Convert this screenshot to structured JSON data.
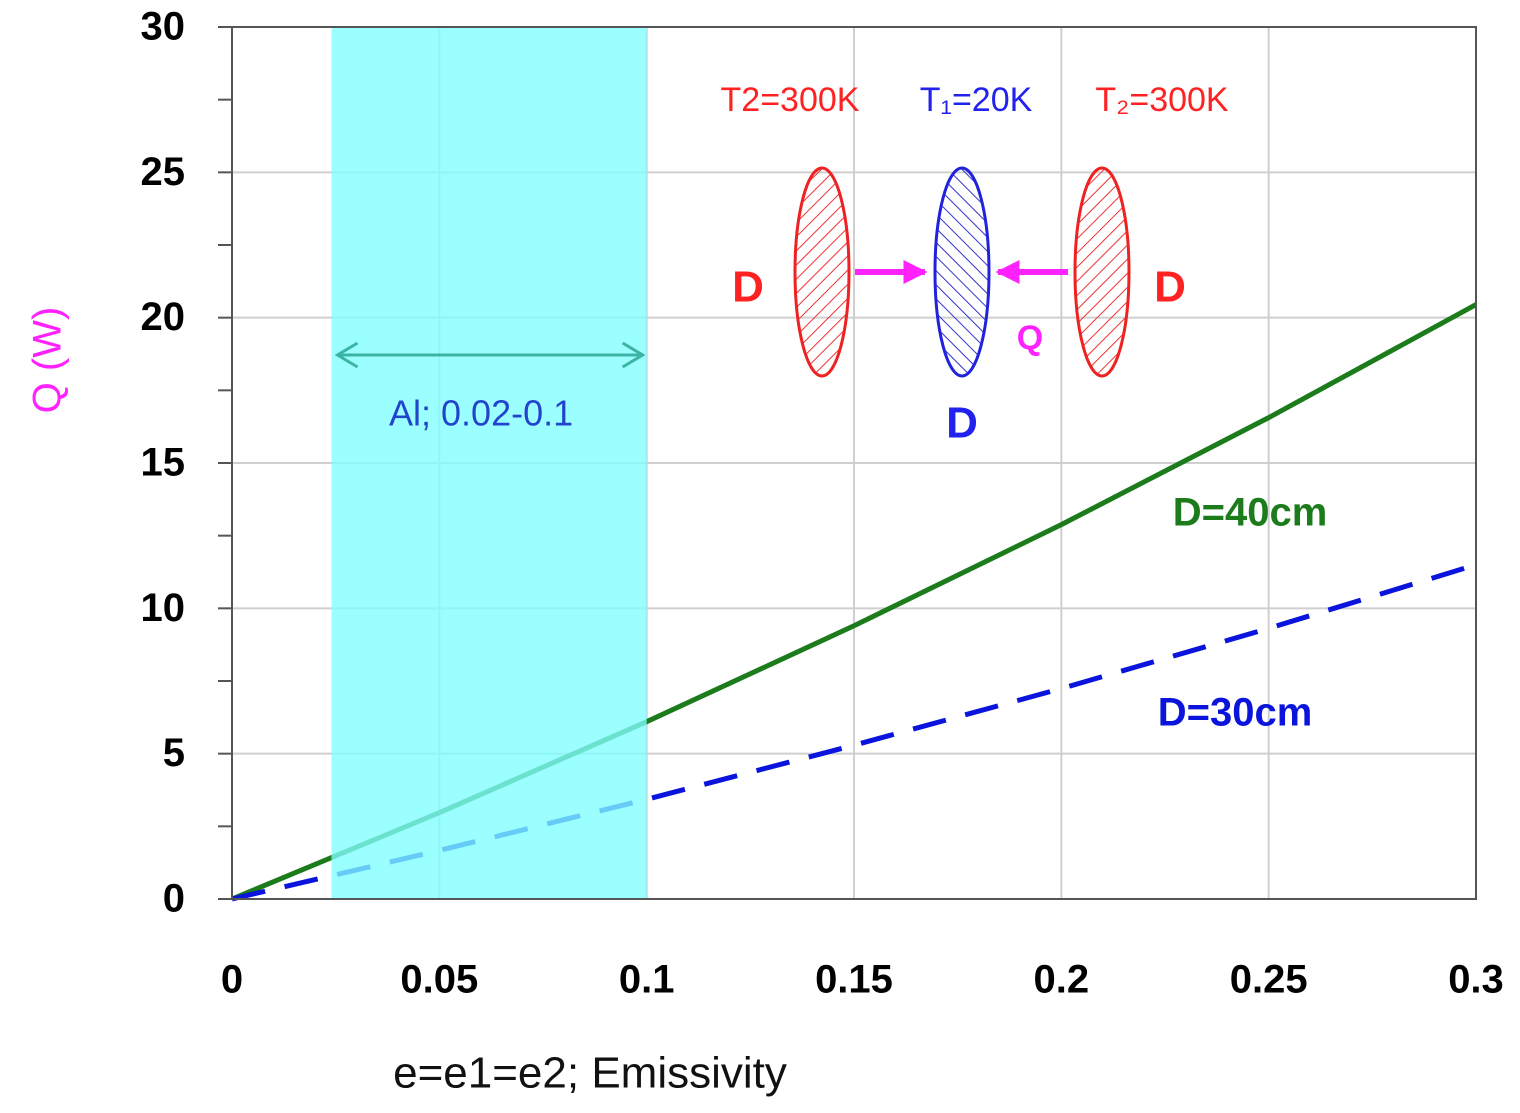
{
  "chart_data": {
    "type": "line",
    "x_label": "e=e1=e2; Emissivity",
    "y_label": "Q (W)",
    "x": [
      0,
      0.05,
      0.1,
      0.15,
      0.2,
      0.25,
      0.3
    ],
    "series": [
      {
        "name": "D=40cm",
        "color": "#1c7c1c",
        "dash": false,
        "values": [
          0,
          2.97,
          6.1,
          9.4,
          12.88,
          16.56,
          20.45
        ]
      },
      {
        "name": "D=30cm",
        "color": "#0a14dc",
        "dash": true,
        "values": [
          0,
          1.67,
          3.43,
          5.29,
          7.24,
          9.31,
          11.5
        ]
      }
    ],
    "xlim": [
      0,
      0.3
    ],
    "ylim": [
      0,
      30
    ],
    "xticks": [
      0,
      0.05,
      0.1,
      0.15,
      0.2,
      0.25,
      0.3
    ],
    "yticks": [
      0,
      5,
      10,
      15,
      20,
      25,
      30
    ],
    "yminorticks": [
      2.5,
      7.5,
      12.5,
      17.5,
      22.5,
      27.5
    ],
    "grid": true,
    "shade": {
      "xlim": [
        0.024,
        0.1
      ],
      "color": "#80ffff",
      "label": "Al; 0.02-0.1"
    },
    "diagram": {
      "temps": [
        "T2=300K",
        "T₁=20K",
        "T₂=300K"
      ],
      "left_label": "D",
      "center_label": "D",
      "right_label": "D",
      "flow_label": "Q"
    }
  }
}
